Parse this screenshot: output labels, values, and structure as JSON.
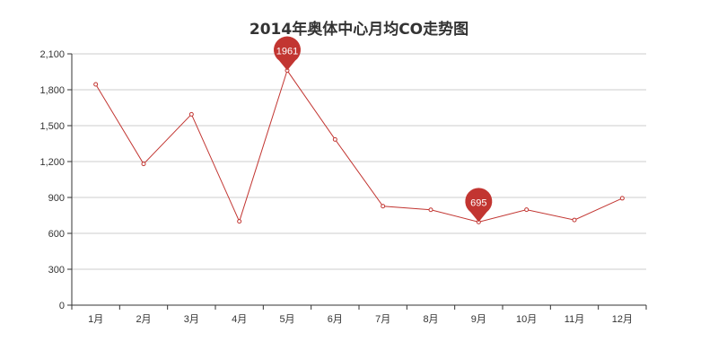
{
  "chart_data": {
    "type": "line",
    "title": "2014年奥体中心月均CO走势图",
    "categories": [
      "1月",
      "2月",
      "3月",
      "4月",
      "5月",
      "6月",
      "7月",
      "8月",
      "9月",
      "10月",
      "11月",
      "12月"
    ],
    "series": [
      {
        "values": [
          1845,
          1180,
          1595,
          700,
          1961,
          1385,
          827,
          797,
          695,
          798,
          712,
          893
        ]
      }
    ],
    "ylim": [
      0,
      2100
    ],
    "yticks": [
      0,
      300,
      600,
      900,
      1200,
      1500,
      1800,
      2100
    ],
    "ytick_labels": [
      "0",
      "300",
      "600",
      "900",
      "1,200",
      "1,500",
      "1,800",
      "2,100"
    ],
    "grid": true,
    "markers": [
      {
        "label": "1961",
        "index": 4,
        "value": 1961,
        "kind": "max"
      },
      {
        "label": "695",
        "index": 8,
        "value": 695,
        "kind": "min"
      }
    ],
    "colors": {
      "line": "#c23531",
      "axis": "#333333",
      "grid": "#cccccc"
    }
  }
}
